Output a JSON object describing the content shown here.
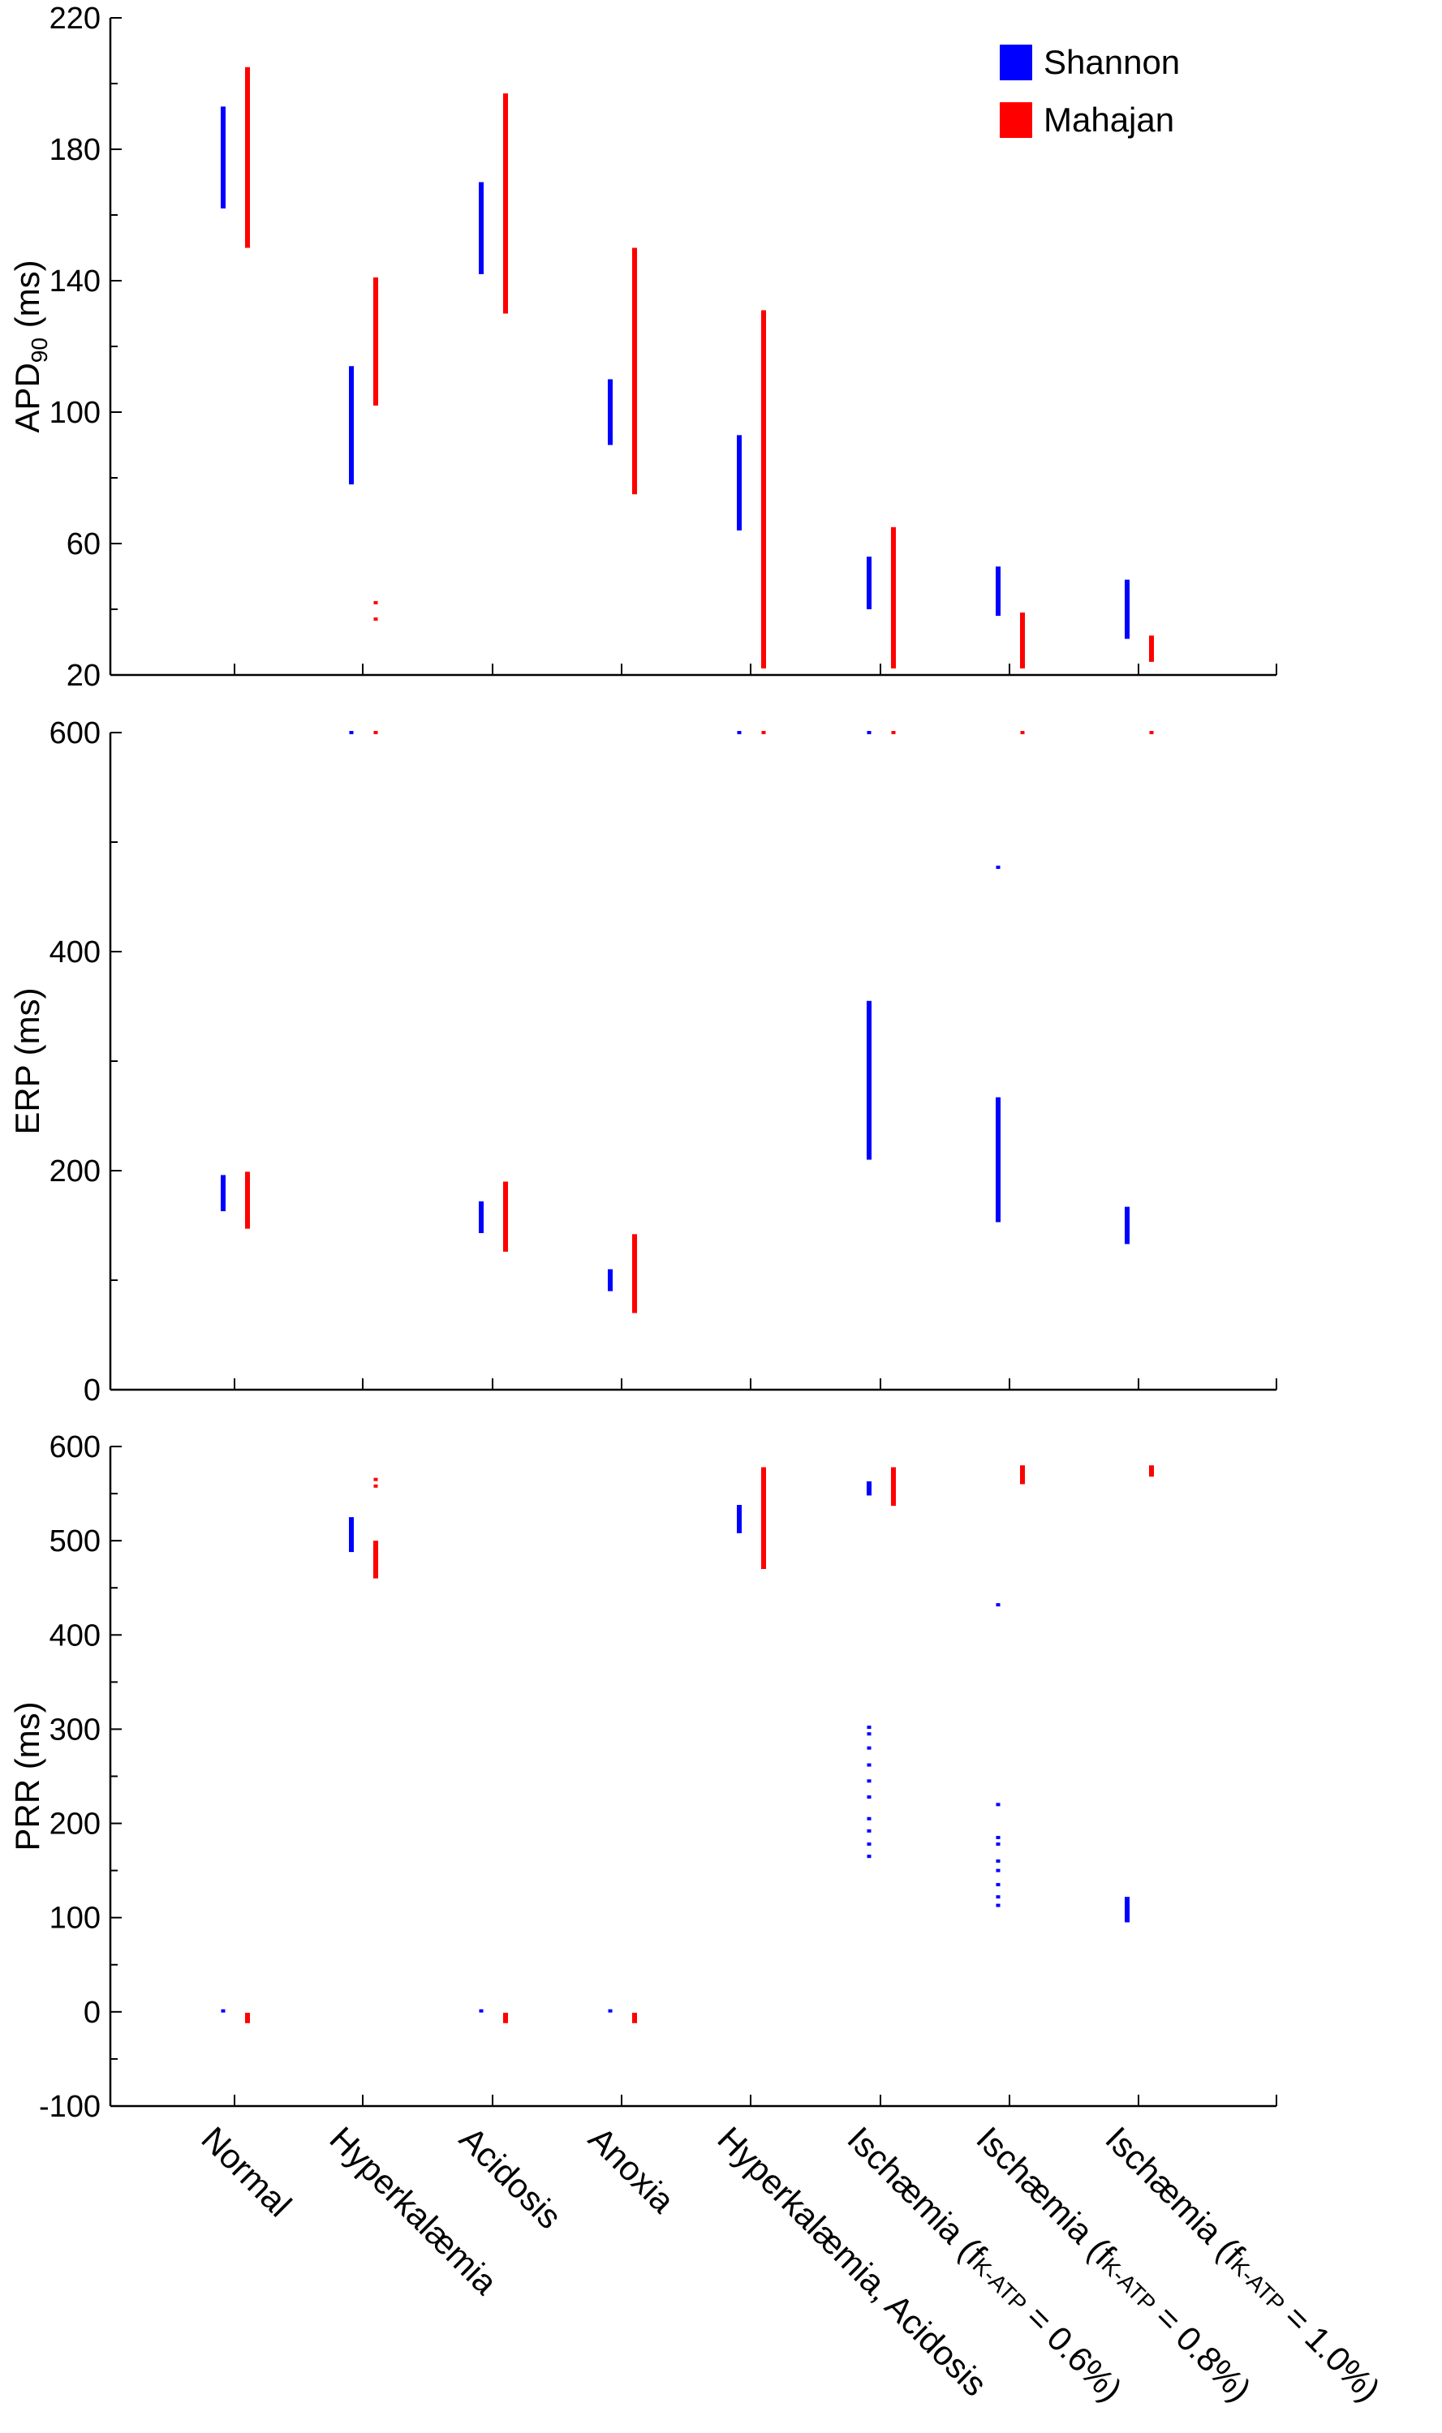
{
  "chart_data": {
    "type": "scatter",
    "categories": [
      {
        "text": "Normal"
      },
      {
        "text": "Hyperkalæmia"
      },
      {
        "text": "Acidosis"
      },
      {
        "text": "Anoxia"
      },
      {
        "text": "Hyperkalæmia, Acidosis"
      },
      {
        "text": "Ischæmia (f",
        "sub": "K-ATP",
        "rest": " = 0.6%)"
      },
      {
        "text": "Ischæmia (f",
        "sub": "K-ATP",
        "rest": " = 0.8%)"
      },
      {
        "text": "Ischæmia (f",
        "sub": "K-ATP",
        "rest": " = 1.0%)"
      }
    ],
    "legend": [
      {
        "name": "Shannon",
        "color": "#0000ff"
      },
      {
        "name": "Mahajan",
        "color": "#ff0000"
      }
    ],
    "legend_position": "top-right",
    "panels": [
      {
        "ylabel_main": "APD",
        "ylabel_sub": "90",
        "ylabel_rest": " (ms)",
        "ylim": [
          20,
          220
        ],
        "yticks": [
          20,
          60,
          100,
          140,
          180,
          220
        ],
        "series": [
          {
            "name": "Shannon",
            "ranges": [
              [
                162,
                193
              ],
              [
                78,
                114
              ],
              [
                142,
                170
              ],
              [
                90,
                110
              ],
              [
                64,
                93
              ],
              [
                40,
                56
              ],
              [
                38,
                53
              ],
              [
                31,
                49
              ]
            ],
            "outliers": [
              [],
              [],
              [],
              [],
              [],
              [],
              [],
              []
            ]
          },
          {
            "name": "Mahajan",
            "ranges": [
              [
                150,
                205
              ],
              [
                102,
                141
              ],
              [
                130,
                197
              ],
              [
                75,
                150
              ],
              [
                22,
                131
              ],
              [
                22,
                65
              ],
              [
                22,
                39
              ],
              [
                24,
                32
              ]
            ],
            "outliers": [
              [],
              [
                37,
                42
              ],
              [],
              [],
              [],
              [],
              [],
              []
            ]
          }
        ]
      },
      {
        "ylabel_main": "ERP",
        "ylabel_sub": "",
        "ylabel_rest": " (ms)",
        "ylim": [
          0,
          600
        ],
        "yticks": [
          0,
          200,
          400,
          600
        ],
        "series": [
          {
            "name": "Shannon",
            "ranges": [
              [
                163,
                196
              ],
              null,
              [
                143,
                172
              ],
              [
                90,
                110
              ],
              null,
              [
                210,
                355
              ],
              [
                153,
                267
              ],
              [
                133,
                167
              ]
            ],
            "outliers": [
              [],
              [
                600
              ],
              [],
              [],
              [
                600
              ],
              [
                600
              ],
              [
                477
              ],
              []
            ]
          },
          {
            "name": "Mahajan",
            "ranges": [
              [
                147,
                199
              ],
              null,
              [
                126,
                190
              ],
              [
                70,
                142
              ],
              null,
              null,
              null,
              null
            ],
            "outliers": [
              [],
              [
                600
              ],
              [],
              [],
              [
                600
              ],
              [
                600
              ],
              [
                600
              ],
              [
                600
              ]
            ]
          }
        ]
      },
      {
        "ylabel_main": "PRR",
        "ylabel_sub": "",
        "ylabel_rest": " (ms)",
        "ylim": [
          -100,
          600
        ],
        "yticks": [
          -100,
          0,
          100,
          200,
          300,
          400,
          500,
          600
        ],
        "series": [
          {
            "name": "Shannon",
            "ranges": [
              null,
              [
                488,
                525
              ],
              null,
              null,
              [
                508,
                538
              ],
              [
                548,
                563
              ],
              null,
              [
                95,
                122
              ]
            ],
            "outliers": [
              [
                1
              ],
              [],
              [
                1
              ],
              [
                1
              ],
              [],
              [
                165,
                178,
                192,
                205,
                228,
                245,
                262,
                280,
                295,
                302
              ],
              [
                113,
                122,
                135,
                150,
                160,
                178,
                185,
                220,
                432
              ],
              []
            ]
          },
          {
            "name": "Mahajan",
            "ranges": [
              [
                -12,
                -1
              ],
              [
                460,
                500
              ],
              [
                -12,
                -1
              ],
              [
                -12,
                -1
              ],
              [
                470,
                578
              ],
              [
                537,
                578
              ],
              [
                560,
                580
              ],
              [
                568,
                580
              ]
            ],
            "outliers": [
              [],
              [
                558,
                565
              ],
              [],
              [],
              [],
              [],
              [],
              []
            ]
          }
        ]
      }
    ]
  }
}
